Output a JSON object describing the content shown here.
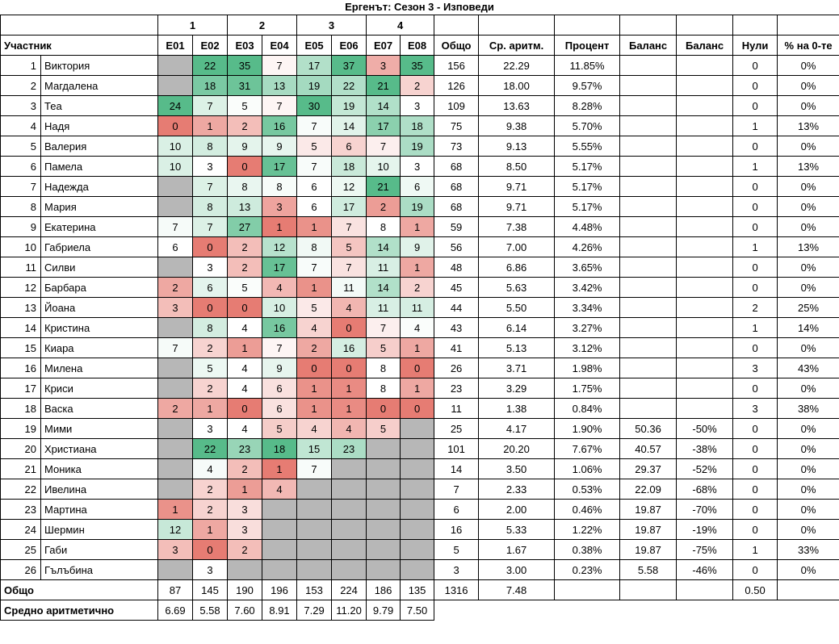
{
  "title": "Ергенът: Сезон 3 - Изповеди",
  "colors": {
    "scale_min": "#E67C73",
    "scale_mid": "#FFFFFF",
    "scale_max": "#57BB8A",
    "empty": "#B7B7B7"
  },
  "table": {
    "participant_label": "Участник",
    "groups": [
      "1",
      "2",
      "3",
      "4"
    ],
    "episode_labels": [
      "E01",
      "E02",
      "E03",
      "E04",
      "E05",
      "E06",
      "E07",
      "E08"
    ],
    "right_labels": [
      "Общо",
      "Ср. аритм.",
      "Процент",
      "Баланс",
      "Баланс",
      "Нули",
      "% на 0-те"
    ],
    "rows": [
      {
        "rank": 1,
        "name": "Виктория",
        "episodes": [
          null,
          22,
          35,
          7,
          17,
          37,
          3,
          35
        ],
        "total": 156,
        "avg": "22.29",
        "percent": "11.85%",
        "balance1": "",
        "balance2": "",
        "zeros": "0",
        "zero_pct": "0%"
      },
      {
        "rank": 2,
        "name": "Магдалена",
        "episodes": [
          null,
          18,
          31,
          13,
          19,
          22,
          21,
          2
        ],
        "total": 126,
        "avg": "18.00",
        "percent": "9.57%",
        "balance1": "",
        "balance2": "",
        "zeros": "0",
        "zero_pct": "0%"
      },
      {
        "rank": 3,
        "name": "Теа",
        "episodes": [
          24,
          7,
          5,
          7,
          30,
          19,
          14,
          3
        ],
        "total": 109,
        "avg": "13.63",
        "percent": "8.28%",
        "balance1": "",
        "balance2": "",
        "zeros": "0",
        "zero_pct": "0%"
      },
      {
        "rank": 4,
        "name": "Надя",
        "episodes": [
          0,
          1,
          2,
          16,
          7,
          14,
          17,
          18
        ],
        "total": 75,
        "avg": "9.38",
        "percent": "5.70%",
        "balance1": "",
        "balance2": "",
        "zeros": "1",
        "zero_pct": "13%"
      },
      {
        "rank": 5,
        "name": "Валерия",
        "episodes": [
          10,
          8,
          9,
          9,
          5,
          6,
          7,
          19
        ],
        "total": 73,
        "avg": "9.13",
        "percent": "5.55%",
        "balance1": "",
        "balance2": "",
        "zeros": "0",
        "zero_pct": "0%"
      },
      {
        "rank": 6,
        "name": "Памела",
        "episodes": [
          10,
          3,
          0,
          17,
          7,
          18,
          10,
          3
        ],
        "total": 68,
        "avg": "8.50",
        "percent": "5.17%",
        "balance1": "",
        "balance2": "",
        "zeros": "1",
        "zero_pct": "13%"
      },
      {
        "rank": 7,
        "name": "Надежда",
        "episodes": [
          null,
          7,
          8,
          8,
          6,
          12,
          21,
          6
        ],
        "total": 68,
        "avg": "9.71",
        "percent": "5.17%",
        "balance1": "",
        "balance2": "",
        "zeros": "0",
        "zero_pct": "0%"
      },
      {
        "rank": 8,
        "name": "Мария",
        "episodes": [
          null,
          8,
          13,
          3,
          6,
          17,
          2,
          19
        ],
        "total": 68,
        "avg": "9.71",
        "percent": "5.17%",
        "balance1": "",
        "balance2": "",
        "zeros": "0",
        "zero_pct": "0%"
      },
      {
        "rank": 9,
        "name": "Екатерина",
        "episodes": [
          7,
          7,
          27,
          1,
          1,
          7,
          8,
          1
        ],
        "total": 59,
        "avg": "7.38",
        "percent": "4.48%",
        "balance1": "",
        "balance2": "",
        "zeros": "0",
        "zero_pct": "0%"
      },
      {
        "rank": 10,
        "name": "Габриела",
        "episodes": [
          6,
          0,
          2,
          12,
          8,
          5,
          14,
          9
        ],
        "total": 56,
        "avg": "7.00",
        "percent": "4.26%",
        "balance1": "",
        "balance2": "",
        "zeros": "1",
        "zero_pct": "13%"
      },
      {
        "rank": 11,
        "name": "Силви",
        "episodes": [
          null,
          3,
          2,
          17,
          7,
          7,
          11,
          1
        ],
        "total": 48,
        "avg": "6.86",
        "percent": "3.65%",
        "balance1": "",
        "balance2": "",
        "zeros": "0",
        "zero_pct": "0%"
      },
      {
        "rank": 12,
        "name": "Барбара",
        "episodes": [
          2,
          6,
          5,
          4,
          1,
          11,
          14,
          2
        ],
        "total": 45,
        "avg": "5.63",
        "percent": "3.42%",
        "balance1": "",
        "balance2": "",
        "zeros": "0",
        "zero_pct": "0%"
      },
      {
        "rank": 13,
        "name": "Йоана",
        "episodes": [
          3,
          0,
          0,
          10,
          5,
          4,
          11,
          11
        ],
        "total": 44,
        "avg": "5.50",
        "percent": "3.34%",
        "balance1": "",
        "balance2": "",
        "zeros": "2",
        "zero_pct": "25%"
      },
      {
        "rank": 14,
        "name": "Кристина",
        "episodes": [
          null,
          8,
          4,
          16,
          4,
          0,
          7,
          4
        ],
        "total": 43,
        "avg": "6.14",
        "percent": "3.27%",
        "balance1": "",
        "balance2": "",
        "zeros": "1",
        "zero_pct": "14%"
      },
      {
        "rank": 15,
        "name": "Киара",
        "episodes": [
          7,
          2,
          1,
          7,
          2,
          16,
          5,
          1
        ],
        "total": 41,
        "avg": "5.13",
        "percent": "3.12%",
        "balance1": "",
        "balance2": "",
        "zeros": "0",
        "zero_pct": "0%"
      },
      {
        "rank": 16,
        "name": "Милена",
        "episodes": [
          null,
          5,
          4,
          9,
          0,
          0,
          8,
          0
        ],
        "total": 26,
        "avg": "3.71",
        "percent": "1.98%",
        "balance1": "",
        "balance2": "",
        "zeros": "3",
        "zero_pct": "43%"
      },
      {
        "rank": 17,
        "name": "Криси",
        "episodes": [
          null,
          2,
          4,
          6,
          1,
          1,
          8,
          1
        ],
        "total": 23,
        "avg": "3.29",
        "percent": "1.75%",
        "balance1": "",
        "balance2": "",
        "zeros": "0",
        "zero_pct": "0%"
      },
      {
        "rank": 18,
        "name": "Васка",
        "episodes": [
          2,
          1,
          0,
          6,
          1,
          1,
          0,
          0
        ],
        "total": 11,
        "avg": "1.38",
        "percent": "0.84%",
        "balance1": "",
        "balance2": "",
        "zeros": "3",
        "zero_pct": "38%"
      },
      {
        "rank": 19,
        "name": "Мими",
        "episodes": [
          null,
          3,
          4,
          5,
          4,
          4,
          5,
          null
        ],
        "total": 25,
        "avg": "4.17",
        "percent": "1.90%",
        "balance1": "50.36",
        "balance2": "-50%",
        "zeros": "0",
        "zero_pct": "0%"
      },
      {
        "rank": 20,
        "name": "Христиана",
        "episodes": [
          null,
          22,
          23,
          18,
          15,
          23,
          null,
          null
        ],
        "total": 101,
        "avg": "20.20",
        "percent": "7.67%",
        "balance1": "40.57",
        "balance2": "-38%",
        "zeros": "0",
        "zero_pct": "0%"
      },
      {
        "rank": 21,
        "name": "Моника",
        "episodes": [
          null,
          4,
          2,
          1,
          7,
          null,
          null,
          null
        ],
        "total": 14,
        "avg": "3.50",
        "percent": "1.06%",
        "balance1": "29.37",
        "balance2": "-52%",
        "zeros": "0",
        "zero_pct": "0%"
      },
      {
        "rank": 22,
        "name": "Ивелина",
        "episodes": [
          null,
          2,
          1,
          4,
          null,
          null,
          null,
          null
        ],
        "total": 7,
        "avg": "2.33",
        "percent": "0.53%",
        "balance1": "22.09",
        "balance2": "-68%",
        "zeros": "0",
        "zero_pct": "0%"
      },
      {
        "rank": 23,
        "name": "Мартина",
        "episodes": [
          1,
          2,
          3,
          null,
          null,
          null,
          null,
          null
        ],
        "total": 6,
        "avg": "2.00",
        "percent": "0.46%",
        "balance1": "19.87",
        "balance2": "-70%",
        "zeros": "0",
        "zero_pct": "0%"
      },
      {
        "rank": 24,
        "name": "Шермин",
        "episodes": [
          12,
          1,
          3,
          null,
          null,
          null,
          null,
          null
        ],
        "total": 16,
        "avg": "5.33",
        "percent": "1.22%",
        "balance1": "19.87",
        "balance2": "-19%",
        "zeros": "0",
        "zero_pct": "0%"
      },
      {
        "rank": 25,
        "name": "Габи",
        "episodes": [
          3,
          0,
          2,
          null,
          null,
          null,
          null,
          null
        ],
        "total": 5,
        "avg": "1.67",
        "percent": "0.38%",
        "balance1": "19.87",
        "balance2": "-75%",
        "zeros": "1",
        "zero_pct": "33%"
      },
      {
        "rank": 26,
        "name": "Гълъбина",
        "episodes": [
          null,
          3,
          null,
          null,
          null,
          null,
          null,
          null
        ],
        "total": 3,
        "avg": "3.00",
        "percent": "0.23%",
        "balance1": "5.58",
        "balance2": "-46%",
        "zeros": "0",
        "zero_pct": "0%"
      }
    ],
    "totals_row": {
      "label": "Общо",
      "episodes": [
        "87",
        "145",
        "190",
        "196",
        "153",
        "224",
        "186",
        "135"
      ],
      "total": "1316",
      "avg": "7.48",
      "percent": "",
      "balance1": "",
      "balance2": "",
      "zeros": "0.50",
      "zero_pct": ""
    },
    "mean_row": {
      "label": "Средно аритметично",
      "episodes": [
        "6.69",
        "5.58",
        "7.60",
        "8.91",
        "7.29",
        "11.20",
        "9.79",
        "7.50"
      ]
    }
  }
}
